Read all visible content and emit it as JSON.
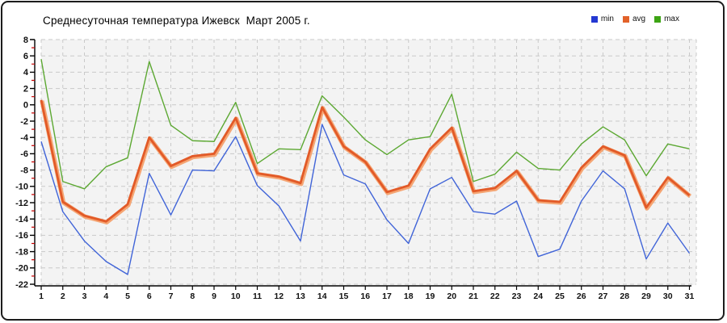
{
  "window": {
    "background": "#ffffff",
    "border_color": "#1c1c1c"
  },
  "chart_data": {
    "type": "line",
    "title": "Среднесуточная температура Ижевск  Март 2005 г.",
    "x": [
      1,
      2,
      3,
      4,
      5,
      6,
      7,
      8,
      9,
      10,
      11,
      12,
      13,
      14,
      15,
      16,
      17,
      18,
      19,
      20,
      21,
      22,
      23,
      24,
      25,
      26,
      27,
      28,
      29,
      30,
      31
    ],
    "series": [
      {
        "name": "min",
        "color": "#4064d8",
        "legend_color": "#2438d2",
        "line_width": 1.4,
        "values": [
          -4.5,
          -13.1,
          -16.7,
          -19.2,
          -20.8,
          -8.4,
          -13.5,
          -8.0,
          -8.1,
          -3.9,
          -9.9,
          -12.4,
          -16.7,
          -2.4,
          -8.6,
          -9.7,
          -14.1,
          -17.0,
          -10.3,
          -8.9,
          -13.1,
          -13.4,
          -11.8,
          -18.6,
          -17.7,
          -11.8,
          -8.1,
          -10.3,
          -18.9,
          -14.5,
          -18.2
        ]
      },
      {
        "name": "avg",
        "color": "#e25a28",
        "legend_color": "#e2622a",
        "halo_color": "#f5a573",
        "line_width": 2.8,
        "values": [
          0.6,
          -11.9,
          -13.6,
          -14.3,
          -12.2,
          -4.0,
          -7.5,
          -6.3,
          -6.0,
          -1.6,
          -8.4,
          -8.8,
          -9.6,
          -0.3,
          -5.1,
          -7.0,
          -10.7,
          -9.9,
          -5.4,
          -2.8,
          -10.6,
          -10.2,
          -8.1,
          -11.7,
          -11.9,
          -7.7,
          -5.1,
          -6.2,
          -12.6,
          -8.9,
          -11.1
        ]
      },
      {
        "name": "max",
        "color": "#5ca832",
        "legend_color": "#3da414",
        "line_width": 1.4,
        "values": [
          5.6,
          -9.4,
          -10.3,
          -7.6,
          -6.5,
          5.3,
          -2.5,
          -4.4,
          -4.5,
          0.3,
          -7.2,
          -5.4,
          -5.5,
          1.1,
          -1.5,
          -4.3,
          -6.1,
          -4.3,
          -3.9,
          1.3,
          -9.4,
          -8.5,
          -5.8,
          -7.8,
          -8.0,
          -4.8,
          -2.7,
          -4.3,
          -8.7,
          -4.8,
          -5.4
        ]
      }
    ],
    "ylim": [
      -22,
      8
    ],
    "y_ticks": [
      8,
      6,
      4,
      2,
      0,
      -2,
      -4,
      -6,
      -8,
      -10,
      -12,
      -14,
      -16,
      -18,
      -20,
      -22
    ],
    "y_minor_ticks": [
      7,
      5,
      3,
      1,
      -1,
      -3,
      -5,
      -7,
      -9,
      -11,
      -13,
      -15,
      -17,
      -19,
      -21
    ],
    "x_ticks": [
      1,
      2,
      3,
      4,
      5,
      6,
      7,
      8,
      9,
      10,
      11,
      12,
      13,
      14,
      15,
      16,
      17,
      18,
      19,
      20,
      21,
      22,
      23,
      24,
      25,
      26,
      27,
      28,
      29,
      30,
      31
    ],
    "grid": true,
    "grid_style": "dashed",
    "grid_color": "#c9c9c9",
    "plot_bg": "#f3f3f3",
    "axis_color": "#000000",
    "minor_tick_color": "#c80000",
    "tick_label_color": "#111111",
    "legend_position": "top-right"
  }
}
